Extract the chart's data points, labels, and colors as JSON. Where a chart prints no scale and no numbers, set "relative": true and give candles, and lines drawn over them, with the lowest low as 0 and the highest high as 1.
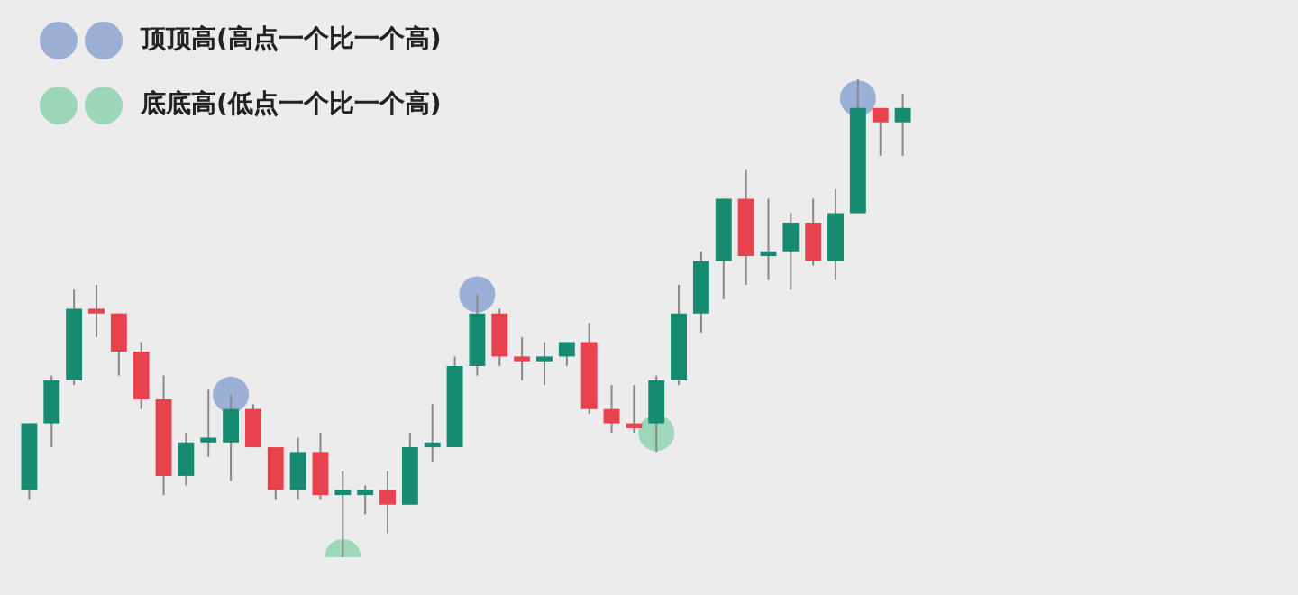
{
  "chart_data": {
    "type": "candlestick",
    "relative": true,
    "legend": "top left",
    "marker": "circle",
    "categories": [
      null,
      null,
      null,
      null,
      null,
      null,
      null,
      null,
      null,
      null,
      null,
      null,
      null,
      null,
      null,
      null,
      null,
      null,
      null,
      null,
      null,
      null,
      null,
      null,
      null,
      null,
      null,
      null,
      null,
      null,
      null,
      null,
      null,
      null,
      null,
      null,
      null,
      null,
      null,
      null
    ],
    "ohlc": [
      [
        0.14,
        0.28,
        0.12,
        0.28
      ],
      [
        0.28,
        0.38,
        0.23,
        0.37
      ],
      [
        0.37,
        0.56,
        0.36,
        0.52
      ],
      [
        0.52,
        0.57,
        0.46,
        0.51
      ],
      [
        0.51,
        0.51,
        0.38,
        0.43
      ],
      [
        0.43,
        0.45,
        0.31,
        0.33
      ],
      [
        0.33,
        0.38,
        0.13,
        0.17
      ],
      [
        0.17,
        0.26,
        0.15,
        0.24
      ],
      [
        0.24,
        0.35,
        0.21,
        0.25
      ],
      [
        0.24,
        0.34,
        0.16,
        0.31
      ],
      [
        0.31,
        0.32,
        0.23,
        0.23
      ],
      [
        0.23,
        0.23,
        0.12,
        0.14
      ],
      [
        0.14,
        0.25,
        0.12,
        0.22
      ],
      [
        0.22,
        0.26,
        0.12,
        0.13
      ],
      [
        0.13,
        0.18,
        0,
        0.14
      ],
      [
        0.13,
        0.15,
        0.09,
        0.14
      ],
      [
        0.14,
        0.18,
        0.05,
        0.11
      ],
      [
        0.11,
        0.26,
        0.11,
        0.23
      ],
      [
        0.23,
        0.32,
        0.2,
        0.24
      ],
      [
        0.23,
        0.42,
        0.23,
        0.4
      ],
      [
        0.4,
        0.55,
        0.38,
        0.51
      ],
      [
        0.51,
        0.52,
        0.4,
        0.42
      ],
      [
        0.42,
        0.46,
        0.37,
        0.41
      ],
      [
        0.41,
        0.45,
        0.36,
        0.42
      ],
      [
        0.42,
        0.45,
        0.4,
        0.45
      ],
      [
        0.45,
        0.49,
        0.3,
        0.31
      ],
      [
        0.31,
        0.36,
        0.26,
        0.28
      ],
      [
        0.28,
        0.36,
        0.26,
        0.27
      ],
      [
        0.28,
        0.38,
        0.22,
        0.37
      ],
      [
        0.37,
        0.57,
        0.36,
        0.51
      ],
      [
        0.51,
        0.64,
        0.47,
        0.62
      ],
      [
        0.62,
        0.75,
        0.54,
        0.75
      ],
      [
        0.75,
        0.81,
        0.57,
        0.63
      ],
      [
        0.63,
        0.75,
        0.58,
        0.64
      ],
      [
        0.64,
        0.72,
        0.56,
        0.7
      ],
      [
        0.7,
        0.75,
        0.61,
        0.62
      ],
      [
        0.62,
        0.77,
        0.58,
        0.72
      ],
      [
        0.72,
        1,
        0.72,
        0.94
      ],
      [
        0.94,
        0.94,
        0.84,
        0.91
      ],
      [
        0.91,
        0.97,
        0.84,
        0.94
      ]
    ],
    "colors": [
      "#178a72",
      "#178a72",
      "#178a72",
      "#e8424f",
      "#e8424f",
      "#e8424f",
      "#e8424f",
      "#178a72",
      "#178a72",
      "#178a72",
      "#e8424f",
      "#e8424f",
      "#178a72",
      "#e8424f",
      "#178a72",
      "#178a72",
      "#e8424f",
      "#178a72",
      "#178a72",
      "#178a72",
      "#178a72",
      "#e8424f",
      "#e8424f",
      "#178a72",
      "#178a72",
      "#e8424f",
      "#e8424f",
      "#e8424f",
      "#178a72",
      "#178a72",
      "#178a72",
      "#178a72",
      "#e8424f",
      "#178a72",
      "#178a72",
      "#e8424f",
      "#178a72",
      "#178a72",
      "#e8424f",
      "#178a72"
    ],
    "series": [
      {
        "name": "顶顶高(高点一个比一个高)",
        "type": "scatter",
        "color": "#8ea6d2",
        "values": [
          null,
          null,
          null,
          null,
          null,
          null,
          null,
          null,
          null,
          0.34,
          null,
          null,
          null,
          null,
          null,
          null,
          null,
          null,
          null,
          null,
          0.55,
          null,
          null,
          null,
          null,
          null,
          null,
          null,
          null,
          null,
          null,
          null,
          null,
          null,
          null,
          null,
          null,
          0.96,
          null,
          null
        ]
      },
      {
        "name": "底底高(低点一个比一个高)",
        "type": "scatter",
        "color": "#8fd4b0",
        "values": [
          null,
          null,
          null,
          null,
          null,
          null,
          null,
          null,
          null,
          null,
          null,
          null,
          null,
          null,
          0,
          null,
          null,
          null,
          null,
          null,
          null,
          null,
          null,
          null,
          null,
          null,
          null,
          null,
          0.26,
          null,
          null,
          null,
          null,
          null,
          null,
          null,
          null,
          null,
          null,
          null
        ]
      }
    ]
  }
}
